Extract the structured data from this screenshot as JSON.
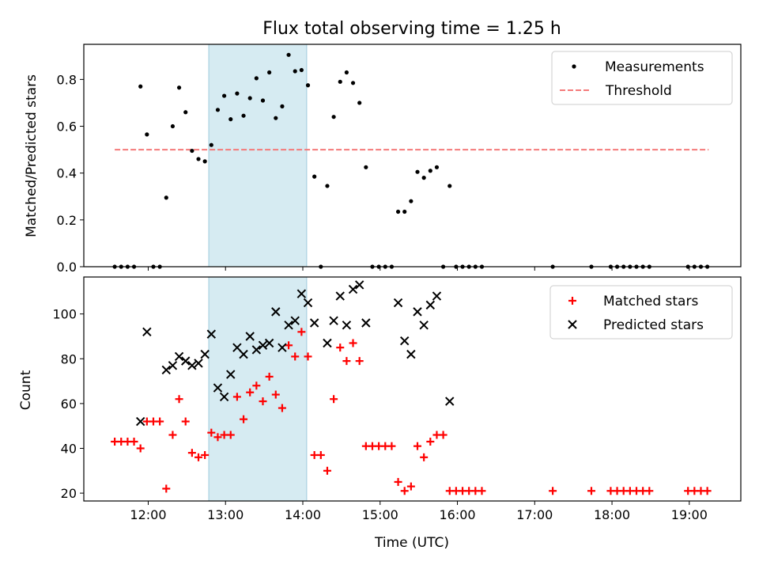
{
  "chart_data": [
    {
      "type": "scatter",
      "title": "Flux total observing time = 1.25 h",
      "xlabel": "",
      "ylabel": "Matched/Predicted stars",
      "xlim": [
        "11:10",
        "19:40"
      ],
      "ylim": [
        0,
        0.95
      ],
      "yticks": [
        "0.0",
        "0.2",
        "0.4",
        "0.6",
        "0.8"
      ],
      "highlight_span": [
        "12:47",
        "14:03"
      ],
      "legend": [
        "Measurements",
        "Threshold"
      ],
      "legend_position": "upper right",
      "threshold": {
        "name": "Threshold",
        "value": 0.5,
        "x_range": [
          "11:34",
          "19:15"
        ],
        "color": "#f47a7a",
        "style": "dashed"
      },
      "series": [
        {
          "name": "Measurements",
          "color": "#000000",
          "points": [
            [
              "11:34",
              0
            ],
            [
              "11:39",
              0
            ],
            [
              "11:44",
              0
            ],
            [
              "11:49",
              0
            ],
            [
              "11:54",
              0.77
            ],
            [
              "11:59",
              0.565
            ],
            [
              "12:04",
              0
            ],
            [
              "12:09",
              0
            ],
            [
              "12:14",
              0.295
            ],
            [
              "12:19",
              0.6
            ],
            [
              "12:24",
              0.765
            ],
            [
              "12:29",
              0.66
            ],
            [
              "12:34",
              0.495
            ],
            [
              "12:39",
              0.46
            ],
            [
              "12:44",
              0.45
            ],
            [
              "12:49",
              0.52
            ],
            [
              "12:54",
              0.67
            ],
            [
              "12:59",
              0.73
            ],
            [
              "13:04",
              0.63
            ],
            [
              "13:09",
              0.74
            ],
            [
              "13:14",
              0.645
            ],
            [
              "13:19",
              0.72
            ],
            [
              "13:24",
              0.805
            ],
            [
              "13:29",
              0.71
            ],
            [
              "13:34",
              0.83
            ],
            [
              "13:39",
              0.635
            ],
            [
              "13:44",
              0.685
            ],
            [
              "13:49",
              0.905
            ],
            [
              "13:54",
              0.835
            ],
            [
              "13:59",
              0.84
            ],
            [
              "14:04",
              0.775
            ],
            [
              "14:09",
              0.385
            ],
            [
              "14:14",
              0
            ],
            [
              "14:19",
              0.345
            ],
            [
              "14:24",
              0.64
            ],
            [
              "14:29",
              0.79
            ],
            [
              "14:34",
              0.83
            ],
            [
              "14:39",
              0.785
            ],
            [
              "14:44",
              0.7
            ],
            [
              "14:49",
              0.425
            ],
            [
              "14:54",
              0
            ],
            [
              "14:59",
              0
            ],
            [
              "15:04",
              0
            ],
            [
              "15:09",
              0
            ],
            [
              "15:14",
              0.235
            ],
            [
              "15:19",
              0.235
            ],
            [
              "15:24",
              0.28
            ],
            [
              "15:29",
              0.405
            ],
            [
              "15:34",
              0.38
            ],
            [
              "15:39",
              0.41
            ],
            [
              "15:44",
              0.425
            ],
            [
              "15:49",
              0
            ],
            [
              "15:54",
              0.345
            ],
            [
              "15:59",
              0
            ],
            [
              "16:04",
              0
            ],
            [
              "16:09",
              0
            ],
            [
              "16:14",
              0
            ],
            [
              "16:19",
              0
            ],
            [
              "17:14",
              0
            ],
            [
              "17:44",
              0
            ],
            [
              "17:59",
              0
            ],
            [
              "18:04",
              0
            ],
            [
              "18:09",
              0
            ],
            [
              "18:14",
              0
            ],
            [
              "18:19",
              0
            ],
            [
              "18:24",
              0
            ],
            [
              "18:29",
              0
            ],
            [
              "18:59",
              0
            ],
            [
              "19:04",
              0
            ],
            [
              "19:09",
              0
            ],
            [
              "19:14",
              0
            ]
          ]
        }
      ]
    },
    {
      "type": "scatter",
      "title": "",
      "xlabel": "Time (UTC)",
      "ylabel": "Count",
      "xlim": [
        "11:10",
        "19:40"
      ],
      "ylim": [
        16.5,
        116.5
      ],
      "xticks": [
        "12:00",
        "13:00",
        "14:00",
        "15:00",
        "16:00",
        "17:00",
        "18:00",
        "19:00"
      ],
      "yticks": [
        "20",
        "40",
        "60",
        "80",
        "100"
      ],
      "highlight_span": [
        "12:47",
        "14:03"
      ],
      "legend": [
        "Matched stars",
        "Predicted stars"
      ],
      "legend_position": "upper right",
      "series": [
        {
          "name": "Matched stars",
          "marker": "+",
          "color": "#ff0000",
          "points": [
            [
              "11:34",
              43
            ],
            [
              "11:39",
              43
            ],
            [
              "11:44",
              43
            ],
            [
              "11:49",
              43
            ],
            [
              "11:54",
              40
            ],
            [
              "11:59",
              52
            ],
            [
              "12:04",
              52
            ],
            [
              "12:09",
              52
            ],
            [
              "12:14",
              22
            ],
            [
              "12:19",
              46
            ],
            [
              "12:24",
              62
            ],
            [
              "12:29",
              52
            ],
            [
              "12:34",
              38
            ],
            [
              "12:39",
              36
            ],
            [
              "12:44",
              37
            ],
            [
              "12:49",
              47
            ],
            [
              "12:54",
              45
            ],
            [
              "12:59",
              46
            ],
            [
              "13:04",
              46
            ],
            [
              "13:09",
              63
            ],
            [
              "13:14",
              53
            ],
            [
              "13:19",
              65
            ],
            [
              "13:24",
              68
            ],
            [
              "13:29",
              61
            ],
            [
              "13:34",
              72
            ],
            [
              "13:39",
              64
            ],
            [
              "13:44",
              58
            ],
            [
              "13:49",
              86
            ],
            [
              "13:54",
              81
            ],
            [
              "13:59",
              92
            ],
            [
              "14:04",
              81
            ],
            [
              "14:09",
              37
            ],
            [
              "14:14",
              37
            ],
            [
              "14:19",
              30
            ],
            [
              "14:24",
              62
            ],
            [
              "14:29",
              85
            ],
            [
              "14:34",
              79
            ],
            [
              "14:39",
              87
            ],
            [
              "14:44",
              79
            ],
            [
              "14:49",
              41
            ],
            [
              "14:54",
              41
            ],
            [
              "14:59",
              41
            ],
            [
              "15:04",
              41
            ],
            [
              "15:09",
              41
            ],
            [
              "15:14",
              25
            ],
            [
              "15:19",
              21
            ],
            [
              "15:24",
              23
            ],
            [
              "15:29",
              41
            ],
            [
              "15:34",
              36
            ],
            [
              "15:39",
              43
            ],
            [
              "15:44",
              46
            ],
            [
              "15:49",
              46
            ],
            [
              "15:54",
              21
            ],
            [
              "15:59",
              21
            ],
            [
              "16:04",
              21
            ],
            [
              "16:09",
              21
            ],
            [
              "16:14",
              21
            ],
            [
              "16:19",
              21
            ],
            [
              "17:14",
              21
            ],
            [
              "17:44",
              21
            ],
            [
              "17:59",
              21
            ],
            [
              "18:04",
              21
            ],
            [
              "18:09",
              21
            ],
            [
              "18:14",
              21
            ],
            [
              "18:19",
              21
            ],
            [
              "18:24",
              21
            ],
            [
              "18:29",
              21
            ],
            [
              "18:59",
              21
            ],
            [
              "19:04",
              21
            ],
            [
              "19:09",
              21
            ],
            [
              "19:14",
              21
            ]
          ]
        },
        {
          "name": "Predicted stars",
          "marker": "x",
          "color": "#000000",
          "points": [
            [
              "11:54",
              52
            ],
            [
              "11:59",
              92
            ],
            [
              "12:14",
              75
            ],
            [
              "12:19",
              77
            ],
            [
              "12:24",
              81
            ],
            [
              "12:29",
              79
            ],
            [
              "12:34",
              77
            ],
            [
              "12:39",
              78
            ],
            [
              "12:44",
              82
            ],
            [
              "12:49",
              91
            ],
            [
              "12:54",
              67
            ],
            [
              "12:59",
              63
            ],
            [
              "13:04",
              73
            ],
            [
              "13:09",
              85
            ],
            [
              "13:14",
              82
            ],
            [
              "13:19",
              90
            ],
            [
              "13:24",
              84
            ],
            [
              "13:29",
              86
            ],
            [
              "13:34",
              87
            ],
            [
              "13:39",
              101
            ],
            [
              "13:44",
              85
            ],
            [
              "13:49",
              95
            ],
            [
              "13:54",
              97
            ],
            [
              "13:59",
              109
            ],
            [
              "14:04",
              105
            ],
            [
              "14:09",
              96
            ],
            [
              "14:19",
              87
            ],
            [
              "14:24",
              97
            ],
            [
              "14:29",
              108
            ],
            [
              "14:34",
              95
            ],
            [
              "14:39",
              111
            ],
            [
              "14:44",
              113
            ],
            [
              "14:49",
              96
            ],
            [
              "15:14",
              105
            ],
            [
              "15:19",
              88
            ],
            [
              "15:24",
              82
            ],
            [
              "15:29",
              101
            ],
            [
              "15:34",
              95
            ],
            [
              "15:39",
              104
            ],
            [
              "15:44",
              108
            ],
            [
              "15:54",
              61
            ]
          ]
        }
      ]
    }
  ]
}
